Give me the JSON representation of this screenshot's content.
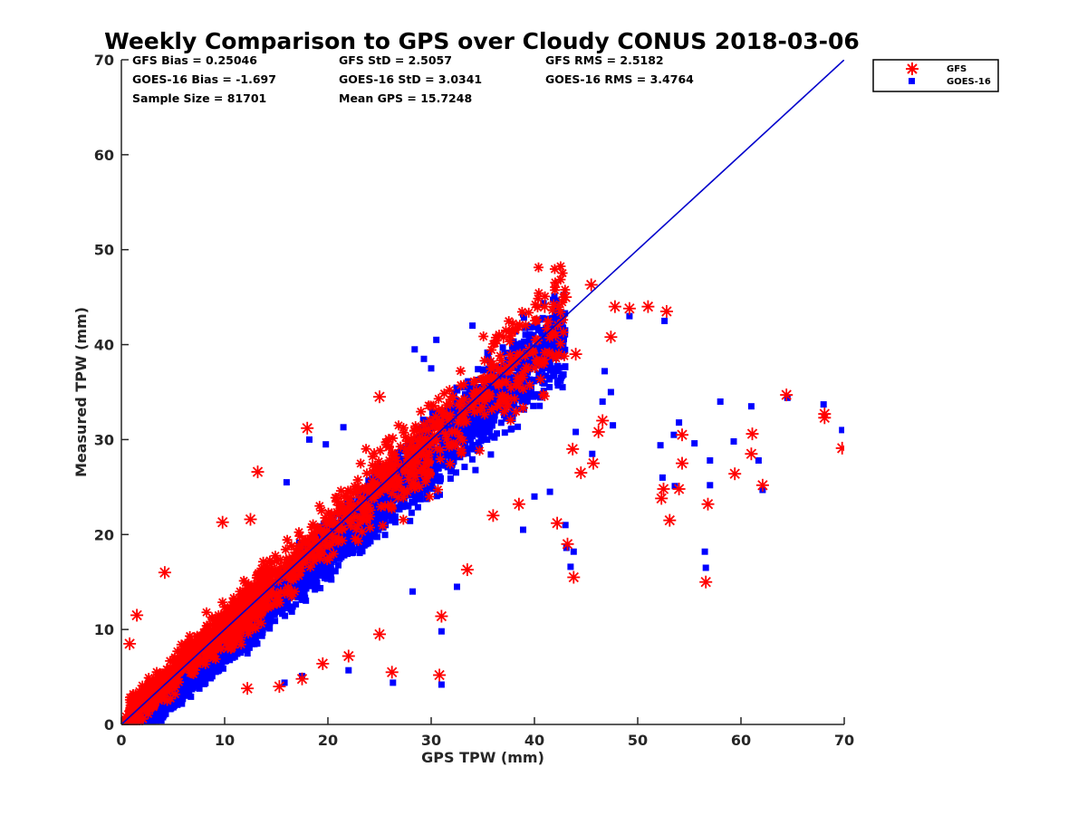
{
  "chart_data": {
    "type": "scatter",
    "title": "Weekly Comparison to GPS over Cloudy CONUS 2018-03-06",
    "xlabel": "GPS TPW (mm)",
    "ylabel": "Measured TPW (mm)",
    "xlim": [
      0,
      70
    ],
    "ylim": [
      0,
      70
    ],
    "xticks": [
      "0",
      "10",
      "20",
      "30",
      "40",
      "50",
      "60",
      "70"
    ],
    "yticks": [
      "0",
      "10",
      "20",
      "30",
      "40",
      "50",
      "60",
      "70"
    ],
    "grid": false,
    "legend_position": "top-right outside",
    "stats": [
      [
        "GFS Bias = 0.25046",
        "GFS StD = 2.5057",
        "GFS RMS = 2.5182"
      ],
      [
        "GOES-16 Bias = -1.697",
        "GOES-16 StD = 3.0341",
        "GOES-16 RMS = 3.4764"
      ],
      [
        "Sample Size = 81701",
        "Mean GPS = 15.7248"
      ]
    ],
    "reference_line": {
      "x": [
        0,
        70
      ],
      "y": [
        0,
        70
      ],
      "color": "#0000cc"
    },
    "series": [
      {
        "name": "GFS",
        "marker": "asterisk",
        "color": "#ff0000",
        "outliers": [
          [
            13.2,
            26.6
          ],
          [
            18.0,
            31.2
          ],
          [
            12.5,
            21.6
          ],
          [
            9.8,
            21.3
          ],
          [
            4.2,
            16.0
          ],
          [
            1.5,
            11.5
          ],
          [
            0.8,
            8.5
          ],
          [
            26.2,
            5.5
          ],
          [
            31.0,
            11.4
          ],
          [
            30.8,
            5.2
          ],
          [
            25.0,
            9.5
          ],
          [
            22.0,
            7.2
          ],
          [
            19.5,
            6.4
          ],
          [
            17.5,
            4.8
          ],
          [
            15.3,
            4.0
          ],
          [
            12.2,
            3.8
          ],
          [
            25.0,
            34.5
          ],
          [
            43.0,
            45.0
          ],
          [
            41.0,
            44.0
          ],
          [
            45.5,
            46.3
          ],
          [
            47.8,
            44.0
          ],
          [
            49.2,
            43.8
          ],
          [
            51.0,
            44.0
          ],
          [
            52.8,
            43.5
          ],
          [
            43.8,
            15.5
          ],
          [
            43.2,
            19.0
          ],
          [
            42.2,
            21.2
          ],
          [
            44.5,
            26.5
          ],
          [
            45.7,
            27.5
          ],
          [
            43.7,
            29.0
          ],
          [
            52.5,
            24.8
          ],
          [
            52.3,
            23.8
          ],
          [
            53.1,
            21.5
          ],
          [
            54.0,
            24.8
          ],
          [
            54.3,
            27.5
          ],
          [
            54.3,
            30.5
          ],
          [
            56.6,
            15.0
          ],
          [
            56.8,
            23.2
          ],
          [
            59.4,
            26.4
          ],
          [
            61.0,
            28.5
          ],
          [
            61.1,
            30.6
          ],
          [
            62.1,
            25.2
          ],
          [
            64.4,
            34.7
          ],
          [
            68.1,
            32.3
          ],
          [
            68.1,
            32.7
          ],
          [
            69.8,
            29.1
          ],
          [
            46.6,
            32.0
          ],
          [
            46.2,
            30.8
          ],
          [
            47.4,
            40.8
          ],
          [
            38.5,
            23.2
          ],
          [
            36.0,
            22.0
          ],
          [
            33.5,
            16.3
          ],
          [
            37.0,
            40.8
          ],
          [
            39.5,
            39.5
          ],
          [
            44.0,
            39.0
          ]
        ]
      },
      {
        "name": "GOES-16",
        "marker": "square",
        "color": "#0000ff",
        "outliers": [
          [
            29.3,
            38.5
          ],
          [
            30.5,
            40.5
          ],
          [
            30.0,
            37.5
          ],
          [
            28.4,
            39.5
          ],
          [
            34.0,
            42.0
          ],
          [
            44.0,
            30.8
          ],
          [
            46.8,
            37.2
          ],
          [
            47.4,
            35.0
          ],
          [
            46.6,
            34.0
          ],
          [
            49.2,
            43.0
          ],
          [
            52.6,
            42.5
          ],
          [
            52.2,
            29.4
          ],
          [
            53.5,
            30.5
          ],
          [
            54.0,
            31.8
          ],
          [
            55.5,
            29.6
          ],
          [
            56.5,
            18.2
          ],
          [
            56.6,
            16.5
          ],
          [
            57.0,
            27.8
          ],
          [
            58.0,
            34.0
          ],
          [
            59.3,
            29.8
          ],
          [
            61.0,
            33.5
          ],
          [
            62.1,
            24.7
          ],
          [
            64.5,
            34.4
          ],
          [
            68.0,
            33.7
          ],
          [
            69.8,
            31.0
          ],
          [
            43.5,
            16.6
          ],
          [
            43.1,
            18.6
          ],
          [
            43.8,
            18.2
          ],
          [
            43.0,
            21.0
          ],
          [
            38.9,
            20.5
          ],
          [
            31.0,
            4.2
          ],
          [
            31.0,
            9.8
          ],
          [
            26.3,
            4.4
          ],
          [
            22.0,
            5.7
          ],
          [
            17.5,
            5.1
          ],
          [
            15.8,
            4.4
          ],
          [
            28.2,
            14.0
          ],
          [
            32.5,
            14.5
          ],
          [
            40.0,
            24.0
          ],
          [
            41.5,
            24.5
          ],
          [
            18.2,
            30.0
          ],
          [
            16.0,
            25.5
          ],
          [
            21.5,
            31.3
          ],
          [
            19.8,
            29.5
          ],
          [
            52.4,
            26.0
          ],
          [
            53.6,
            25.1
          ],
          [
            57.0,
            25.2
          ],
          [
            61.7,
            27.8
          ],
          [
            45.6,
            28.5
          ],
          [
            47.6,
            31.5
          ]
        ]
      }
    ]
  }
}
